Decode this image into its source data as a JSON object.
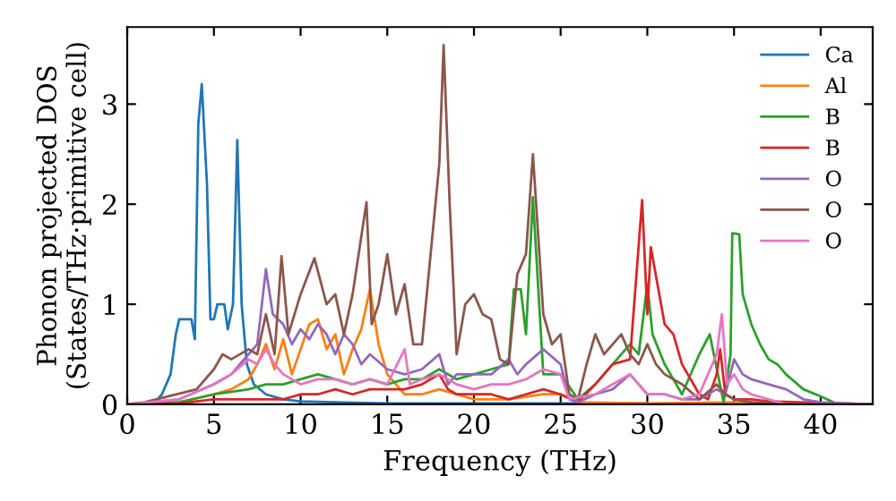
{
  "chart_data": {
    "type": "line",
    "xlabel": "Frequency (THz)",
    "ylabel": "Phonon projected DOS\n(States/THz·primitive cell)",
    "xlim": [
      0,
      43
    ],
    "ylim": [
      0,
      3.77
    ],
    "xticks": [
      0,
      5,
      10,
      15,
      20,
      25,
      30,
      35,
      40
    ],
    "yticks": [
      0,
      1,
      2,
      3
    ],
    "grid": false,
    "legend": "top right",
    "marker": "none",
    "line_style": "solid",
    "series": [
      {
        "name": "Ca",
        "color": "#1f77b4",
        "x": [
          0,
          1.5,
          2,
          2.5,
          2.8,
          3.0,
          3.7,
          3.9,
          4.1,
          4.3,
          4.6,
          4.8,
          5.0,
          5.2,
          5.6,
          5.8,
          6.1,
          6.35,
          6.6,
          6.9,
          7.3,
          8,
          9,
          10,
          12,
          15,
          20,
          25,
          30
        ],
        "values": [
          0,
          0,
          0.1,
          0.3,
          0.7,
          0.85,
          0.85,
          0.65,
          2.8,
          3.2,
          2.2,
          0.85,
          0.85,
          1.0,
          1.0,
          0.75,
          1.0,
          2.64,
          1.0,
          0.4,
          0.2,
          0.1,
          0.05,
          0.03,
          0.02,
          0.01,
          0.01,
          0.01,
          0.01
        ]
      },
      {
        "name": "Al",
        "color": "#ff7f0e",
        "x": [
          0,
          3,
          5,
          6,
          7,
          7.5,
          8,
          8.5,
          9,
          9.5,
          10,
          10.5,
          11,
          11.5,
          12,
          12.5,
          13,
          13.5,
          14,
          14.5,
          15,
          15.5,
          16,
          17,
          18,
          19,
          20,
          22,
          24,
          25,
          26,
          30,
          35,
          40
        ],
        "values": [
          0,
          0.02,
          0.1,
          0.15,
          0.25,
          0.4,
          0.6,
          0.35,
          0.65,
          0.3,
          0.55,
          0.8,
          0.85,
          0.55,
          0.7,
          0.3,
          0.55,
          0.75,
          1.15,
          0.6,
          0.3,
          0.2,
          0.1,
          0.1,
          0.15,
          0.1,
          0.05,
          0.05,
          0.1,
          0.1,
          0.02,
          0.01,
          0.02,
          0
        ]
      },
      {
        "name": "B",
        "color": "#2ca02c",
        "x": [
          0,
          3,
          5,
          7,
          8,
          9,
          10,
          11,
          12,
          13,
          14,
          15,
          16,
          17,
          18,
          19,
          20,
          21,
          22,
          22.3,
          22.7,
          23.0,
          23.4,
          24,
          25,
          26,
          27,
          28,
          29,
          29.5,
          30,
          30.3,
          31,
          32,
          33,
          33.6,
          34.4,
          34.8,
          34.9,
          35.3,
          35.5,
          36,
          36.5,
          37,
          37.5,
          38,
          39,
          40,
          41,
          43
        ],
        "values": [
          0,
          0.02,
          0.1,
          0.15,
          0.2,
          0.2,
          0.25,
          0.3,
          0.25,
          0.2,
          0.25,
          0.2,
          0.25,
          0.25,
          0.35,
          0.25,
          0.3,
          0.35,
          0.4,
          1.15,
          1.15,
          0.7,
          2.07,
          0.3,
          0.3,
          0.05,
          0.2,
          0.4,
          0.6,
          0.5,
          1.2,
          0.7,
          0.4,
          0.1,
          0.5,
          0.7,
          0.02,
          0.5,
          1.71,
          1.7,
          1.1,
          0.8,
          0.6,
          0.45,
          0.4,
          0.3,
          0.15,
          0.08,
          0,
          0
        ]
      },
      {
        "name": "B",
        "color": "#d62728",
        "x": [
          0,
          3,
          5,
          7,
          9,
          10,
          11,
          12,
          13,
          14,
          15,
          16,
          17,
          18,
          18.5,
          19,
          20,
          21,
          22,
          23,
          24,
          25,
          26,
          27,
          28,
          29,
          29.7,
          30,
          30.2,
          31,
          31.5,
          32,
          33,
          33.5,
          34,
          34.2,
          34.5,
          35,
          36,
          37,
          43
        ],
        "values": [
          0,
          0.01,
          0.05,
          0.05,
          0.05,
          0.1,
          0.1,
          0.15,
          0.1,
          0.15,
          0.15,
          0.15,
          0.2,
          0.3,
          0.15,
          0.1,
          0.1,
          0.1,
          0.05,
          0.1,
          0.15,
          0.1,
          0.02,
          0.2,
          0.4,
          0.45,
          2.04,
          0.9,
          1.57,
          0.8,
          0.7,
          0.4,
          0.1,
          0.05,
          0.3,
          0.55,
          0.1,
          0.05,
          0.05,
          0.03,
          0
        ]
      },
      {
        "name": "O",
        "color": "#9467bd",
        "x": [
          0,
          3,
          5,
          6,
          7,
          7.5,
          8,
          8.4,
          9,
          9.5,
          10,
          10.5,
          11,
          11.5,
          12,
          12.5,
          13,
          13.5,
          14,
          15,
          16,
          17,
          18,
          18.5,
          19,
          20,
          21,
          22,
          22.5,
          23,
          24,
          25,
          25.5,
          26,
          27,
          28,
          29,
          30,
          31,
          32,
          33,
          34,
          34.5,
          35,
          35.5,
          36,
          37,
          38,
          39,
          40,
          43
        ],
        "values": [
          0,
          0.05,
          0.2,
          0.3,
          0.5,
          0.6,
          1.35,
          0.9,
          0.8,
          0.6,
          0.75,
          0.65,
          0.8,
          0.7,
          0.5,
          0.7,
          0.6,
          0.4,
          0.5,
          0.35,
          0.3,
          0.35,
          0.5,
          0.2,
          0.3,
          0.3,
          0.3,
          0.45,
          0.3,
          0.4,
          0.55,
          0.4,
          0.05,
          0.02,
          0.1,
          0.15,
          0.3,
          0.1,
          0.1,
          0.05,
          0.05,
          0.15,
          0.1,
          0.45,
          0.3,
          0.25,
          0.2,
          0.15,
          0.05,
          0.02,
          0
        ]
      },
      {
        "name": "O",
        "color": "#8c564b",
        "x": [
          0,
          1,
          4,
          5,
          5.5,
          6,
          7,
          7.5,
          8,
          8.5,
          8.9,
          9.3,
          10,
          10.8,
          11.5,
          12,
          12.5,
          13,
          13.8,
          14.1,
          14.5,
          15,
          15.5,
          16,
          16.5,
          17,
          17.5,
          18,
          18.25,
          18.6,
          19,
          19.5,
          20,
          20.5,
          21,
          21.5,
          22,
          22.5,
          23,
          23.4,
          24,
          24.5,
          25,
          25.5,
          26,
          26.5,
          27,
          27.5,
          28,
          28.5,
          29,
          29.5,
          30,
          30.5,
          31,
          32,
          33,
          34,
          34.5,
          35,
          36,
          38,
          43
        ],
        "values": [
          0,
          0.02,
          0.15,
          0.35,
          0.5,
          0.45,
          0.55,
          0.5,
          0.9,
          0.5,
          1.48,
          0.7,
          1.1,
          1.46,
          1.0,
          1.1,
          0.7,
          1.1,
          2.02,
          0.8,
          1.0,
          1.5,
          0.9,
          1.2,
          0.6,
          0.6,
          1.5,
          2.4,
          3.59,
          2.0,
          0.5,
          1.0,
          1.1,
          0.9,
          0.85,
          0.45,
          0.4,
          1.3,
          1.5,
          2.5,
          0.9,
          0.6,
          0.7,
          0.1,
          0.05,
          0.4,
          0.7,
          0.5,
          0.6,
          0.7,
          0.5,
          0.4,
          0.6,
          0.4,
          0.3,
          0.2,
          0.05,
          0.2,
          0.1,
          0.05,
          0.02,
          0,
          0
        ]
      },
      {
        "name": "O",
        "color": "#e377c2",
        "x": [
          0,
          3,
          5,
          6,
          7,
          7.5,
          8,
          8.5,
          9,
          10,
          11,
          12,
          13,
          14,
          15,
          16,
          16.3,
          17,
          18,
          19,
          20,
          21,
          22,
          23,
          24,
          25,
          25.5,
          27,
          28,
          29,
          30,
          31,
          32,
          33,
          34,
          34.3,
          34.6,
          35,
          35.5,
          36,
          37,
          38,
          43
        ],
        "values": [
          0,
          0.05,
          0.2,
          0.3,
          0.45,
          0.4,
          0.55,
          0.4,
          0.3,
          0.2,
          0.25,
          0.25,
          0.2,
          0.25,
          0.2,
          0.55,
          0.2,
          0.25,
          0.3,
          0.2,
          0.15,
          0.2,
          0.2,
          0.25,
          0.35,
          0.3,
          0.05,
          0.1,
          0.2,
          0.3,
          0.1,
          0.1,
          0.05,
          0.1,
          0.5,
          0.9,
          0.2,
          0.3,
          0.15,
          0.1,
          0.05,
          0,
          0
        ]
      }
    ]
  }
}
